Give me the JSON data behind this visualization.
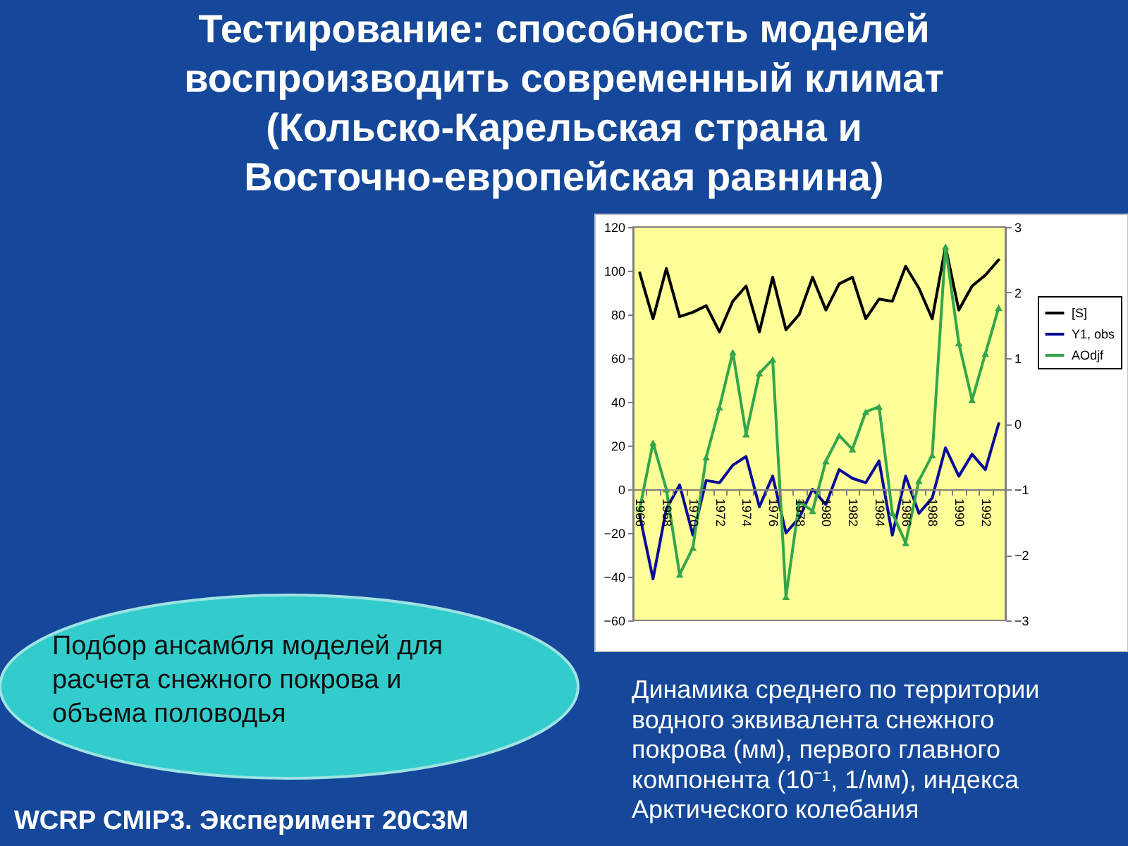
{
  "chart_data": {
    "type": "line",
    "title": "Тестирование: способность моделей воспроизводить современный климат (Кольско-Карельская страна и Восточно-европейская равнина)",
    "categories": [
      "1966",
      null,
      "1968",
      null,
      "1970",
      null,
      "1972",
      null,
      "1974",
      null,
      "1976",
      null,
      "1978",
      null,
      "1980",
      null,
      "1982",
      null,
      "1984",
      null,
      "1986",
      null,
      "1988",
      null,
      "1990",
      null,
      "1992",
      null
    ],
    "series": [
      {
        "name": "[S]",
        "color": "#000000",
        "marker": "none",
        "values": [
          99,
          78,
          101,
          79,
          81,
          84,
          72,
          86,
          93,
          72,
          97,
          73,
          80,
          97,
          82,
          94,
          97,
          78,
          87,
          86,
          102,
          92,
          78,
          111,
          82,
          93,
          98,
          105
        ]
      },
      {
        "name": "Y1, obs",
        "color": "#0a0a9a",
        "marker": "none",
        "values": [
          -12,
          -41,
          -9,
          2,
          -21,
          4,
          3,
          11,
          15,
          -8,
          6,
          -20,
          -13,
          0,
          -7,
          9,
          5,
          3,
          13,
          -21,
          6,
          -11,
          -4,
          19,
          6,
          16,
          9,
          30
        ]
      },
      {
        "name": "AOdjf",
        "color": "#33a64c",
        "marker": "triangle",
        "axis": "y2",
        "values": [
          -1.3,
          -0.29,
          -1.0,
          -2.3,
          -1.89,
          -0.51,
          0.25,
          1.09,
          -0.16,
          0.77,
          0.98,
          -2.64,
          -1.19,
          -1.33,
          -0.57,
          -0.18,
          -0.39,
          0.18,
          0.26,
          -1.36,
          -1.82,
          -0.87,
          -0.48,
          2.7,
          1.23,
          0.36,
          1.07,
          1.77
        ]
      }
    ],
    "ylim": [
      -60,
      120
    ],
    "yticks": [
      -60,
      -40,
      -20,
      0,
      20,
      40,
      60,
      80,
      100,
      120
    ],
    "y2lim": [
      -3,
      3
    ],
    "y2ticks": [
      -3,
      -2,
      -1,
      0,
      1,
      2,
      3
    ],
    "grid": false,
    "legend": "right",
    "line_style": "solid",
    "annotations": [
      "Подбор ансамбля моделей для расчета снежного покрова и объема половодья",
      "Динамика среднего по территории водного эквивалента снежного покрова (мм), первого главного компонента (10⁻¹, 1/мм), индекса Арктического колебания",
      "WCRP CMIP3. Эксперимент 20C3M"
    ]
  }
}
